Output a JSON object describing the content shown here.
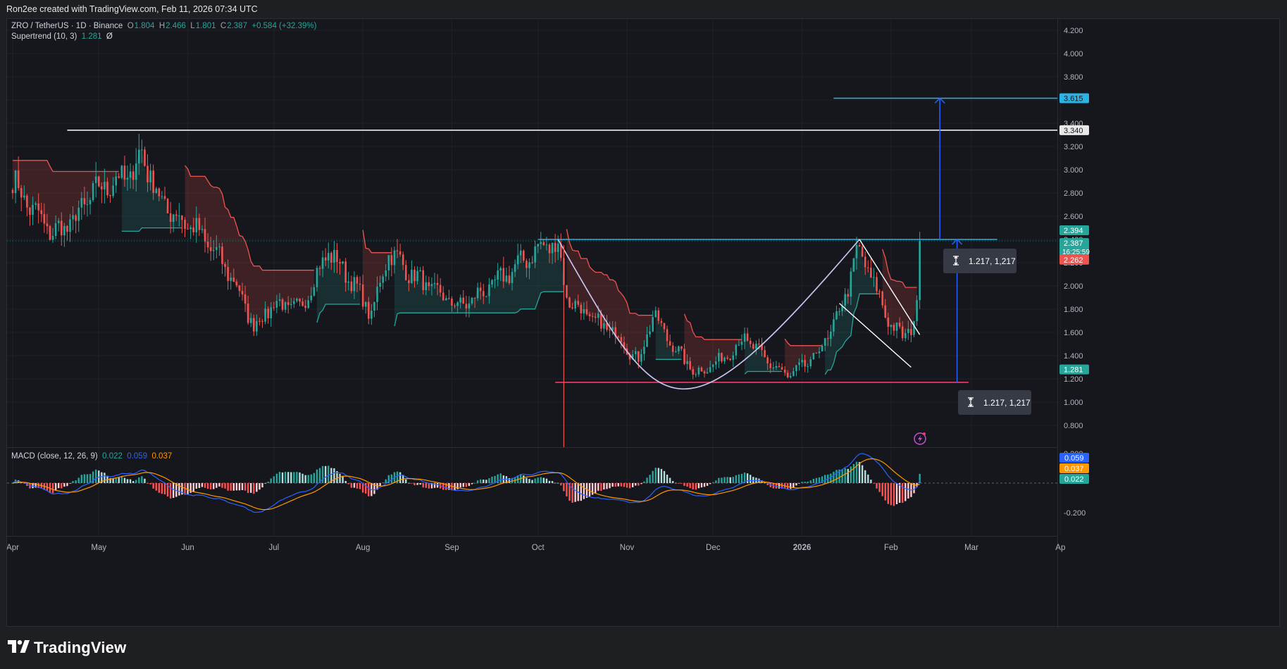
{
  "header": {
    "caption": "Ron2ee created with TradingView.com, Feb 11, 2026 07:34 UTC"
  },
  "legend": {
    "symbol": "ZRO / TetherUS · 1D · Binance",
    "open_key": "O",
    "open": "1.804",
    "high_key": "H",
    "high": "2.466",
    "low_key": "L",
    "low": "1.801",
    "close_key": "C",
    "close": "2.387",
    "change": "+0.584 (+32.39%)",
    "supertrend_label": "Supertrend (10, 3)",
    "supertrend_value": "1.281",
    "supertrend_extra": "Ø",
    "macd_label": "MACD (close, 12, 26, 9)",
    "macd_hist": "0.022",
    "macd_line": "0.059",
    "macd_signal": "0.037"
  },
  "footer": {
    "brand": "TradingView"
  },
  "colors": {
    "up": "#26a69a",
    "down": "#ef5350",
    "resistance": "#2bb3e3",
    "target": "#2bb3e3",
    "pattern": "#c8c3ec",
    "support": "#f23b6c",
    "measure": "#2962ff",
    "white_line": "#ffffff"
  },
  "icons": {
    "logo": "tradingview-logo-icon",
    "alert": "lightning-alert-icon",
    "measure": "range-measure-icon"
  },
  "chart_data": {
    "type": "candlestick",
    "symbol": "ZRO/USDT",
    "interval": "1D",
    "price_axis": {
      "ticks": [
        "4.200",
        "4.000",
        "3.800",
        "3.600",
        "3.400",
        "3.200",
        "3.000",
        "2.800",
        "2.600",
        "2.400",
        "2.200",
        "2.000",
        "1.800",
        "1.600",
        "1.400",
        "1.200",
        "1.000",
        "0.800"
      ],
      "range": [
        0.62,
        4.29
      ]
    },
    "time_axis": {
      "labels": [
        "Apr",
        "May",
        "Jun",
        "Jul",
        "Aug",
        "Sep",
        "Oct",
        "Nov",
        "Dec",
        "2026",
        "Feb",
        "Mar",
        "Ap"
      ]
    },
    "price_tags": [
      {
        "value": "3.615",
        "kind": "target"
      },
      {
        "value": "3.340",
        "kind": "level"
      },
      {
        "value": "2.394",
        "kind": "high"
      },
      {
        "value": "2.387",
        "kind": "last",
        "countdown": "16:25:59"
      },
      {
        "value": "2.262",
        "kind": "supertrend-down"
      },
      {
        "value": "1.281",
        "kind": "supertrend"
      }
    ],
    "levels": [
      {
        "name": "resistance",
        "price": 2.4,
        "from": "2025-10-01",
        "to": "2026-03-10"
      },
      {
        "name": "april-high",
        "price": 3.34,
        "from": "2025-04-20",
        "to": "2026-03-31"
      },
      {
        "name": "target",
        "price": 3.615,
        "from": "2026-01-12",
        "to": "2026-03-31"
      },
      {
        "name": "cup-base",
        "price": 1.17,
        "from": "2025-10-07",
        "to": "2026-02-28"
      }
    ],
    "measure_labels": [
      "1.217, 1,217",
      "1.217, 1,217"
    ],
    "pattern": "cup-and-handle",
    "ohlc_last": {
      "open": 1.804,
      "high": 2.466,
      "low": 1.801,
      "close": 2.387,
      "change": 0.584,
      "change_pct": 32.39
    },
    "close_path": [
      [
        "2025-04-01",
        2.9
      ],
      [
        "2025-04-08",
        2.65
      ],
      [
        "2025-04-15",
        2.45
      ],
      [
        "2025-04-22",
        2.55
      ],
      [
        "2025-04-29",
        2.8
      ],
      [
        "2025-05-06",
        2.9
      ],
      [
        "2025-05-12",
        2.95
      ],
      [
        "2025-05-16",
        3.15
      ],
      [
        "2025-05-22",
        2.75
      ],
      [
        "2025-05-28",
        2.6
      ],
      [
        "2025-06-03",
        2.5
      ],
      [
        "2025-06-10",
        2.3
      ],
      [
        "2025-06-17",
        2.05
      ],
      [
        "2025-06-24",
        1.65
      ],
      [
        "2025-07-01",
        1.85
      ],
      [
        "2025-07-10",
        1.8
      ],
      [
        "2025-07-20",
        2.3
      ],
      [
        "2025-07-28",
        2.05
      ],
      [
        "2025-08-04",
        1.75
      ],
      [
        "2025-08-10",
        2.3
      ],
      [
        "2025-08-18",
        2.1
      ],
      [
        "2025-08-26",
        1.95
      ],
      [
        "2025-09-04",
        1.82
      ],
      [
        "2025-09-15",
        2.0
      ],
      [
        "2025-09-25",
        2.2
      ],
      [
        "2025-10-03",
        2.35
      ],
      [
        "2025-10-08",
        2.35
      ],
      [
        "2025-10-11",
        1.9
      ],
      [
        "2025-10-20",
        1.7
      ],
      [
        "2025-10-28",
        1.6
      ],
      [
        "2025-11-05",
        1.35
      ],
      [
        "2025-11-10",
        1.75
      ],
      [
        "2025-11-18",
        1.45
      ],
      [
        "2025-11-25",
        1.25
      ],
      [
        "2025-12-03",
        1.35
      ],
      [
        "2025-12-12",
        1.55
      ],
      [
        "2025-12-20",
        1.35
      ],
      [
        "2025-12-27",
        1.22
      ],
      [
        "2026-01-04",
        1.35
      ],
      [
        "2026-01-10",
        1.55
      ],
      [
        "2026-01-16",
        1.9
      ],
      [
        "2026-01-20",
        2.3
      ],
      [
        "2026-01-25",
        2.1
      ],
      [
        "2026-01-30",
        1.75
      ],
      [
        "2026-02-05",
        1.55
      ],
      [
        "2026-02-08",
        1.65
      ],
      [
        "2026-02-10",
        1.8
      ],
      [
        "2026-02-11",
        2.387
      ]
    ],
    "macd": {
      "axis_ticks": [
        "0.200",
        "-0.200"
      ],
      "line": 0.059,
      "signal": 0.037,
      "hist": 0.022
    }
  }
}
